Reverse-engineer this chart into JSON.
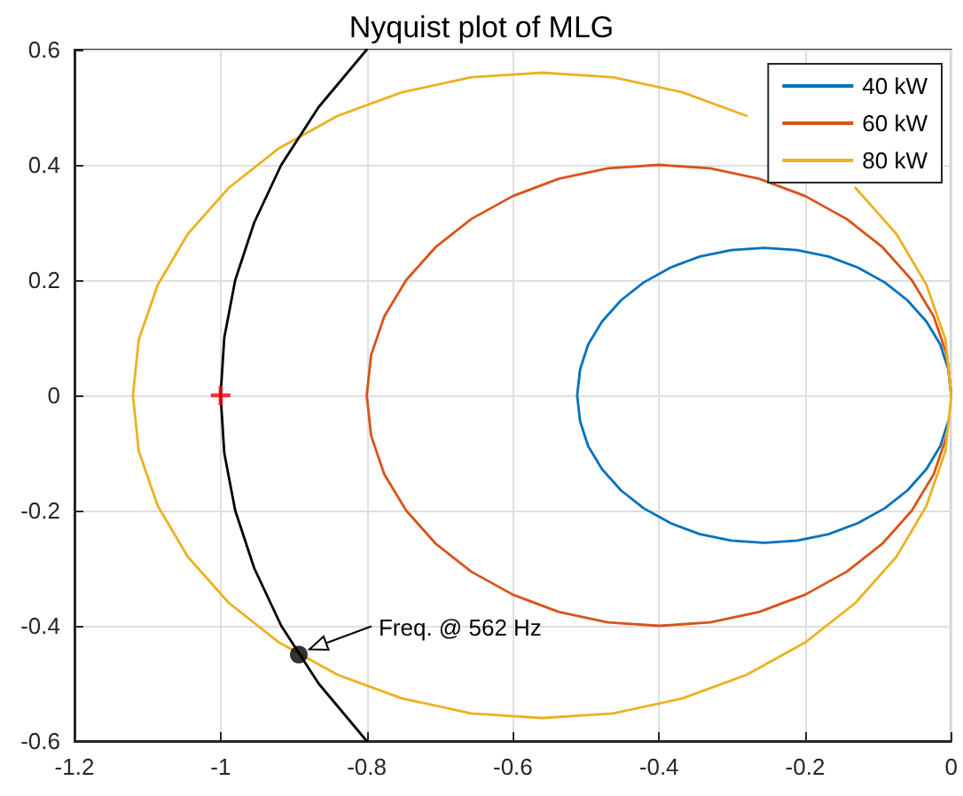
{
  "chart_data": {
    "type": "line",
    "title": "Nyquist plot of MLG",
    "series": [
      {
        "name": "40 kW",
        "color": "#0072bd",
        "x": [
          0,
          -0.004,
          -0.015,
          -0.034,
          -0.06,
          -0.091,
          -0.128,
          -0.168,
          -0.211,
          -0.256,
          -0.301,
          -0.344,
          -0.384,
          -0.421,
          -0.452,
          -0.478,
          -0.497,
          -0.508,
          -0.512,
          -0.508,
          -0.497,
          -0.478,
          -0.452,
          -0.421,
          -0.384,
          -0.344,
          -0.301,
          -0.256,
          -0.211,
          -0.168,
          -0.128,
          -0.091,
          -0.06,
          -0.034,
          -0.015,
          -0.004
        ],
        "values": [
          0,
          0.045,
          0.088,
          0.128,
          0.165,
          0.196,
          0.222,
          0.241,
          0.252,
          0.256,
          0.252,
          0.241,
          0.222,
          0.196,
          0.165,
          0.128,
          0.088,
          0.045,
          0,
          -0.045,
          -0.088,
          -0.128,
          -0.165,
          -0.196,
          -0.222,
          -0.241,
          -0.252,
          -0.256,
          -0.252,
          -0.241,
          -0.222,
          -0.196,
          -0.165,
          -0.128,
          -0.088,
          -0.045
        ]
      },
      {
        "name": "60 kW",
        "color": "#d95319",
        "x": [
          0,
          -0.006,
          -0.024,
          -0.054,
          -0.094,
          -0.143,
          -0.2,
          -0.263,
          -0.33,
          -0.4,
          -0.47,
          -0.537,
          -0.6,
          -0.657,
          -0.706,
          -0.746,
          -0.776,
          -0.794,
          -0.8,
          -0.794,
          -0.776,
          -0.746,
          -0.706,
          -0.657,
          -0.6,
          -0.537,
          -0.47,
          -0.4,
          -0.33,
          -0.263,
          -0.2,
          -0.143,
          -0.094,
          -0.054,
          -0.024,
          -0.006
        ],
        "values": [
          0,
          0.07,
          0.137,
          0.2,
          0.257,
          0.306,
          0.346,
          0.376,
          0.394,
          0.4,
          0.394,
          0.376,
          0.346,
          0.306,
          0.257,
          0.2,
          0.137,
          0.07,
          0,
          -0.07,
          -0.137,
          -0.2,
          -0.257,
          -0.306,
          -0.346,
          -0.376,
          -0.394,
          -0.4,
          -0.394,
          -0.376,
          -0.346,
          -0.306,
          -0.257,
          -0.2,
          -0.137,
          -0.07
        ]
      },
      {
        "name": "80 kW",
        "color": "#edb120",
        "x": [
          0,
          -0.008,
          -0.034,
          -0.075,
          -0.131,
          -0.2,
          -0.28,
          -0.368,
          -0.463,
          -0.56,
          -0.657,
          -0.752,
          -0.84,
          -0.92,
          -0.989,
          -1.045,
          -1.086,
          -1.112,
          -1.12,
          -1.112,
          -1.086,
          -1.045,
          -0.989,
          -0.92,
          -0.84,
          -0.752,
          -0.657,
          -0.56,
          -0.463,
          -0.368,
          -0.28,
          -0.2,
          -0.131,
          -0.075,
          -0.034,
          -0.008,
          0
        ],
        "values": [
          0,
          0.097,
          0.192,
          0.28,
          0.36,
          null,
          0.485,
          0.526,
          0.552,
          0.56,
          0.552,
          0.526,
          0.485,
          0.429,
          0.36,
          0.28,
          0.192,
          0.097,
          0,
          -0.097,
          -0.192,
          -0.28,
          -0.36,
          -0.429,
          -0.485,
          -0.526,
          -0.552,
          -0.56,
          -0.552,
          -0.526,
          -0.485,
          -0.429,
          -0.36,
          -0.28,
          -0.192,
          -0.097,
          0
        ]
      },
      {
        "color": "#000000",
        "x": [
          -0.8,
          -0.866,
          -0.917,
          -0.954,
          -0.98,
          -0.995,
          -1,
          -0.995,
          -0.98,
          -0.954,
          -0.917,
          -0.866,
          -0.8
        ],
        "values": [
          0.6,
          0.5,
          0.4,
          0.3,
          0.2,
          0.1,
          0,
          -0.1,
          -0.2,
          -0.3,
          -0.4,
          -0.5,
          -0.6
        ]
      },
      {
        "type": "scatter",
        "marker": "cross",
        "color": "#ff0000",
        "x": [
          -1
        ],
        "values": [
          0
        ]
      },
      {
        "type": "scatter",
        "marker": "circle",
        "color": "#000000",
        "x": [
          -0.893
        ],
        "values": [
          -0.45
        ]
      }
    ],
    "annotations": [
      {
        "text": "Freq. @ 562 Hz",
        "x": -0.893,
        "y": -0.45
      }
    ],
    "marker": "none",
    "line_style": "solid",
    "xlim": [
      -1.2,
      0
    ],
    "xticks": [
      -1.2,
      -1,
      -0.8,
      -0.6,
      -0.4,
      -0.2,
      0
    ],
    "ylim": [
      -0.6,
      0.6
    ],
    "yticks": [
      -0.6,
      -0.4,
      -0.2,
      0,
      0.2,
      0.4,
      0.6
    ],
    "grid": true,
    "legend": "top right"
  }
}
